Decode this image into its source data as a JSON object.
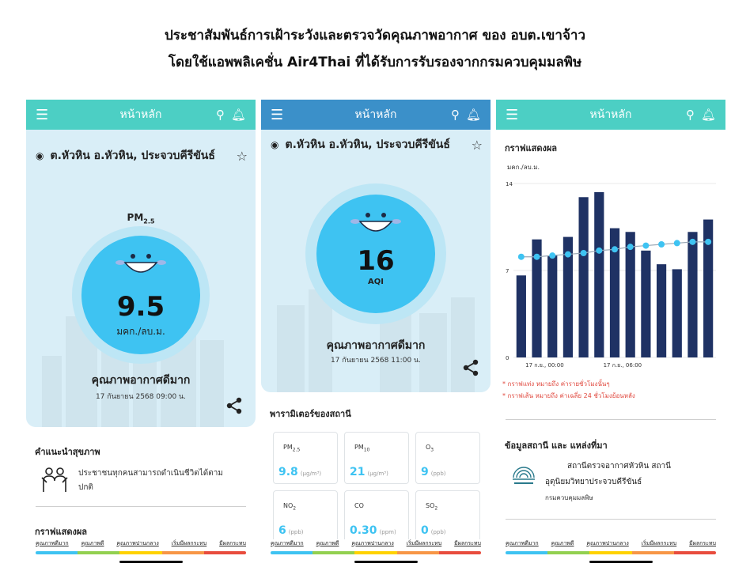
{
  "heading": {
    "line1": "ประชาสัมพันธ์การเฝ้าระวังและตรวจวัดคุณภาพอากาศ ของ อบต.เขาจ้าว",
    "line2": "โดยใช้แอพพลิเคชั่น Air4Thai ที่ได้รับการรับรองจากกรมควบคุมมลพิษ"
  },
  "appbar": {
    "title": "หน้าหลัก",
    "menu_icon": "hamburger-menu-icon",
    "search_icon": "search-icon",
    "bell_icon": "bell-icon"
  },
  "location": {
    "name": "ต.หัวหิน อ.หัวหิน, ประจวบคีรีขันธ์"
  },
  "screen1": {
    "pm_label": "PM",
    "pm_sub": "2.5",
    "value": "9.5",
    "unit": "มคก./ลบ.ม.",
    "quality": "คุณภาพอากาศดีมาก",
    "datetime": "17 กันยายน 2568  09:00 น.",
    "advice_title": "คำแนะนำสุขภาพ",
    "advice_line1": "ประชาชนทุกคนสามารถดำเนินชีวิตได้ตาม",
    "advice_line2": "ปกติ",
    "graph_title": "กราฟแสดงผล"
  },
  "screen2": {
    "value": "16",
    "unit": "AQI",
    "quality": "คุณภาพอากาศดีมาก",
    "datetime": "17 กันยายน 2568  11:00 น.",
    "params_title": "พารามิเตอร์ของสถานี",
    "params": [
      {
        "name": "PM",
        "sub": "2.5",
        "value": "9.8",
        "unit": "(μg/m³)"
      },
      {
        "name": "PM",
        "sub": "10",
        "value": "21",
        "unit": "(μg/m³)"
      },
      {
        "name": "O",
        "sub": "3",
        "value": "9",
        "unit": "(ppb)"
      },
      {
        "name": "NO",
        "sub": "2",
        "value": "6",
        "unit": "(ppb)"
      },
      {
        "name": "CO",
        "sub": "",
        "value": "0.30",
        "unit": "(ppm)"
      },
      {
        "name": "SO",
        "sub": "2",
        "value": "0",
        "unit": "(ppb)"
      }
    ]
  },
  "screen3": {
    "graph_title": "กราฟแสดงผล",
    "note1": "* กราฟแท่ง หมายถึง ค่ารายชั่วโมงนั้นๆ",
    "note2": "* กราฟเส้น หมายถึง ค่าเฉลี่ย 24 ชั่วโมงย้อนหลัง",
    "station_title": "ข้อมูลสถานี และ แหล่งที่มา",
    "station_line1": "สถานีตรวจอากาศหัวหิน สถานี",
    "station_line2": "อุตุนิยมวิทยาประจวบคีรีขันธ์",
    "org": "กรมควบคุมมลพิษ"
  },
  "legend": [
    "คุณภาพดีมาก",
    "คุณภาพดี",
    "คุณภาพปานกลาง",
    "เริ่มมีผลกระทบ",
    "มีผลกระทบ"
  ],
  "colors": {
    "teal": "#4ccfc4",
    "blue_bar": "#3b90c9",
    "gauge": "#3ec3f2",
    "legend": [
      "#3ec3f2",
      "#92d050",
      "#ffd200",
      "#f79646",
      "#e84c3d"
    ],
    "bars": "#1f3264",
    "line": "#3ec3f2",
    "note": "#e0483e"
  },
  "chart_data": {
    "type": "bar",
    "ylabel": "มคก./ลบ.ม.",
    "ylim": [
      0,
      14
    ],
    "yticks": [
      0,
      7,
      14
    ],
    "xticks": [
      "17 ก.ย., 00:00",
      "17 ก.ย., 06:00"
    ],
    "tick_index": [
      4,
      14
    ],
    "series": [
      {
        "kind": "bar",
        "values": [
          6.6,
          9.5,
          8.2,
          9.7,
          12.9,
          13.3,
          10.4,
          10.1,
          8.6,
          7.5,
          7.1,
          10.1,
          11.1
        ]
      },
      {
        "kind": "line",
        "values": [
          8.1,
          8.1,
          8.2,
          8.3,
          8.4,
          8.6,
          8.7,
          8.9,
          9.0,
          9.1,
          9.2,
          9.3,
          9.3
        ]
      }
    ]
  }
}
